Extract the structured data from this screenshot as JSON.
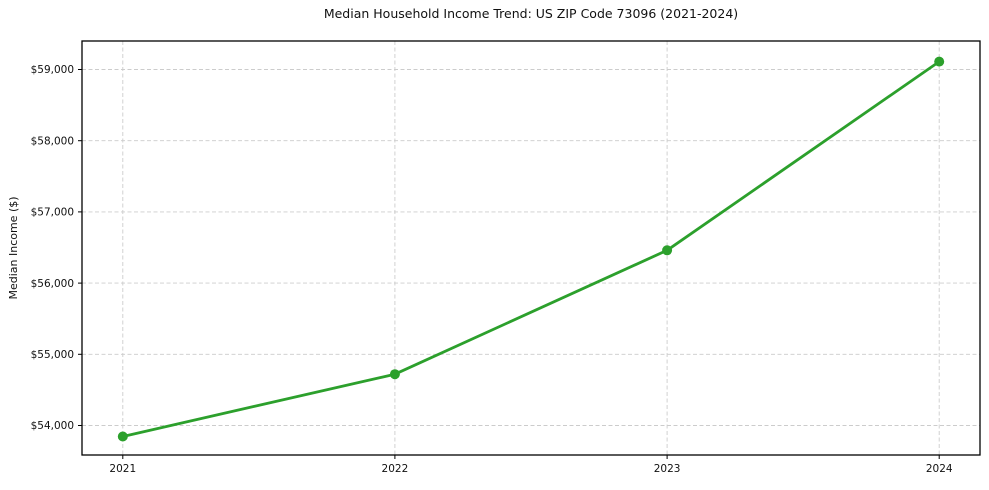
{
  "page": {
    "background_color": "#ffffff"
  },
  "chart_data": {
    "type": "line",
    "title": "Median Household Income Trend: US ZIP Code 73096 (2021-2024)",
    "xlabel": "",
    "ylabel": "Median Income ($)",
    "x": [
      2021,
      2022,
      2023,
      2024
    ],
    "xtick_labels": [
      "2021",
      "2022",
      "2023",
      "2024"
    ],
    "values": [
      53845,
      54720,
      56460,
      59110
    ],
    "yticks": [
      54000,
      55000,
      56000,
      57000,
      58000,
      59000
    ],
    "ytick_labels": [
      "$54,000",
      "$55,000",
      "$56,000",
      "$57,000",
      "$58,000",
      "$59,000"
    ],
    "xlim": [
      2020.85,
      2024.15
    ],
    "ylim": [
      53585,
      59400
    ],
    "grid": true,
    "grid_style": "dashed",
    "legend": "none",
    "line_color": "#2ca02c",
    "marker": "circle",
    "marker_radius": 5,
    "grid_color": "#cccccc",
    "spine_color": "#000000"
  }
}
